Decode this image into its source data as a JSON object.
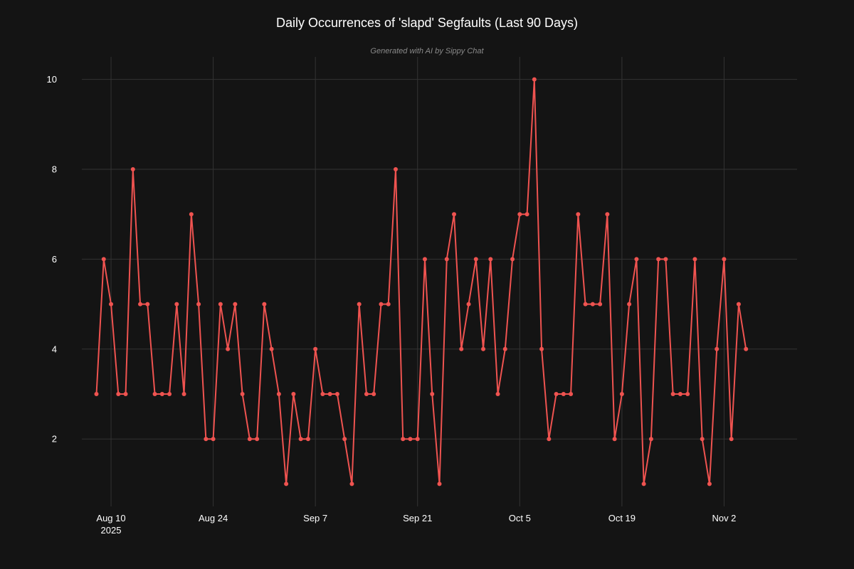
{
  "chart_data": {
    "type": "line",
    "title": "Daily Occurrences of 'slapd' Segfaults (Last 90 Days)",
    "subtitle": "Generated with AI by Sippy Chat",
    "xlabel": "",
    "ylabel": "",
    "x_start": "2025-08-08",
    "x_end": "2025-11-05",
    "xlim": [
      "2025-08-06",
      "2025-11-12"
    ],
    "ylim": [
      0.5,
      10.5
    ],
    "x_ticks": [
      {
        "date": "2025-08-10",
        "label": "Aug 10",
        "sublabel": "2025"
      },
      {
        "date": "2025-08-24",
        "label": "Aug 24",
        "sublabel": ""
      },
      {
        "date": "2025-09-07",
        "label": "Sep 7",
        "sublabel": ""
      },
      {
        "date": "2025-09-21",
        "label": "Sep 21",
        "sublabel": ""
      },
      {
        "date": "2025-10-05",
        "label": "Oct 5",
        "sublabel": ""
      },
      {
        "date": "2025-10-19",
        "label": "Oct 19",
        "sublabel": ""
      },
      {
        "date": "2025-11-02",
        "label": "Nov 2",
        "sublabel": ""
      }
    ],
    "y_ticks": [
      2,
      4,
      6,
      8,
      10
    ],
    "grid": true,
    "legend": "none",
    "background": "#141414",
    "grid_color": "#333333",
    "series": [
      {
        "color": "#ef5350",
        "values": [
          3,
          6,
          5,
          3,
          3,
          8,
          5,
          5,
          3,
          3,
          3,
          5,
          3,
          7,
          5,
          2,
          2,
          5,
          4,
          5,
          3,
          2,
          2,
          5,
          4,
          3,
          1,
          3,
          2,
          2,
          4,
          3,
          3,
          3,
          2,
          1,
          5,
          3,
          3,
          5,
          5,
          8,
          2,
          2,
          2,
          6,
          3,
          1,
          6,
          7,
          4,
          5,
          6,
          4,
          6,
          3,
          4,
          6,
          7,
          7,
          10,
          4,
          2,
          3,
          3,
          3,
          7,
          5,
          5,
          5,
          7,
          2,
          3,
          5,
          6,
          1,
          2,
          6,
          6,
          3,
          3,
          3,
          6,
          2,
          1,
          4,
          6,
          2,
          5,
          4
        ]
      }
    ]
  }
}
